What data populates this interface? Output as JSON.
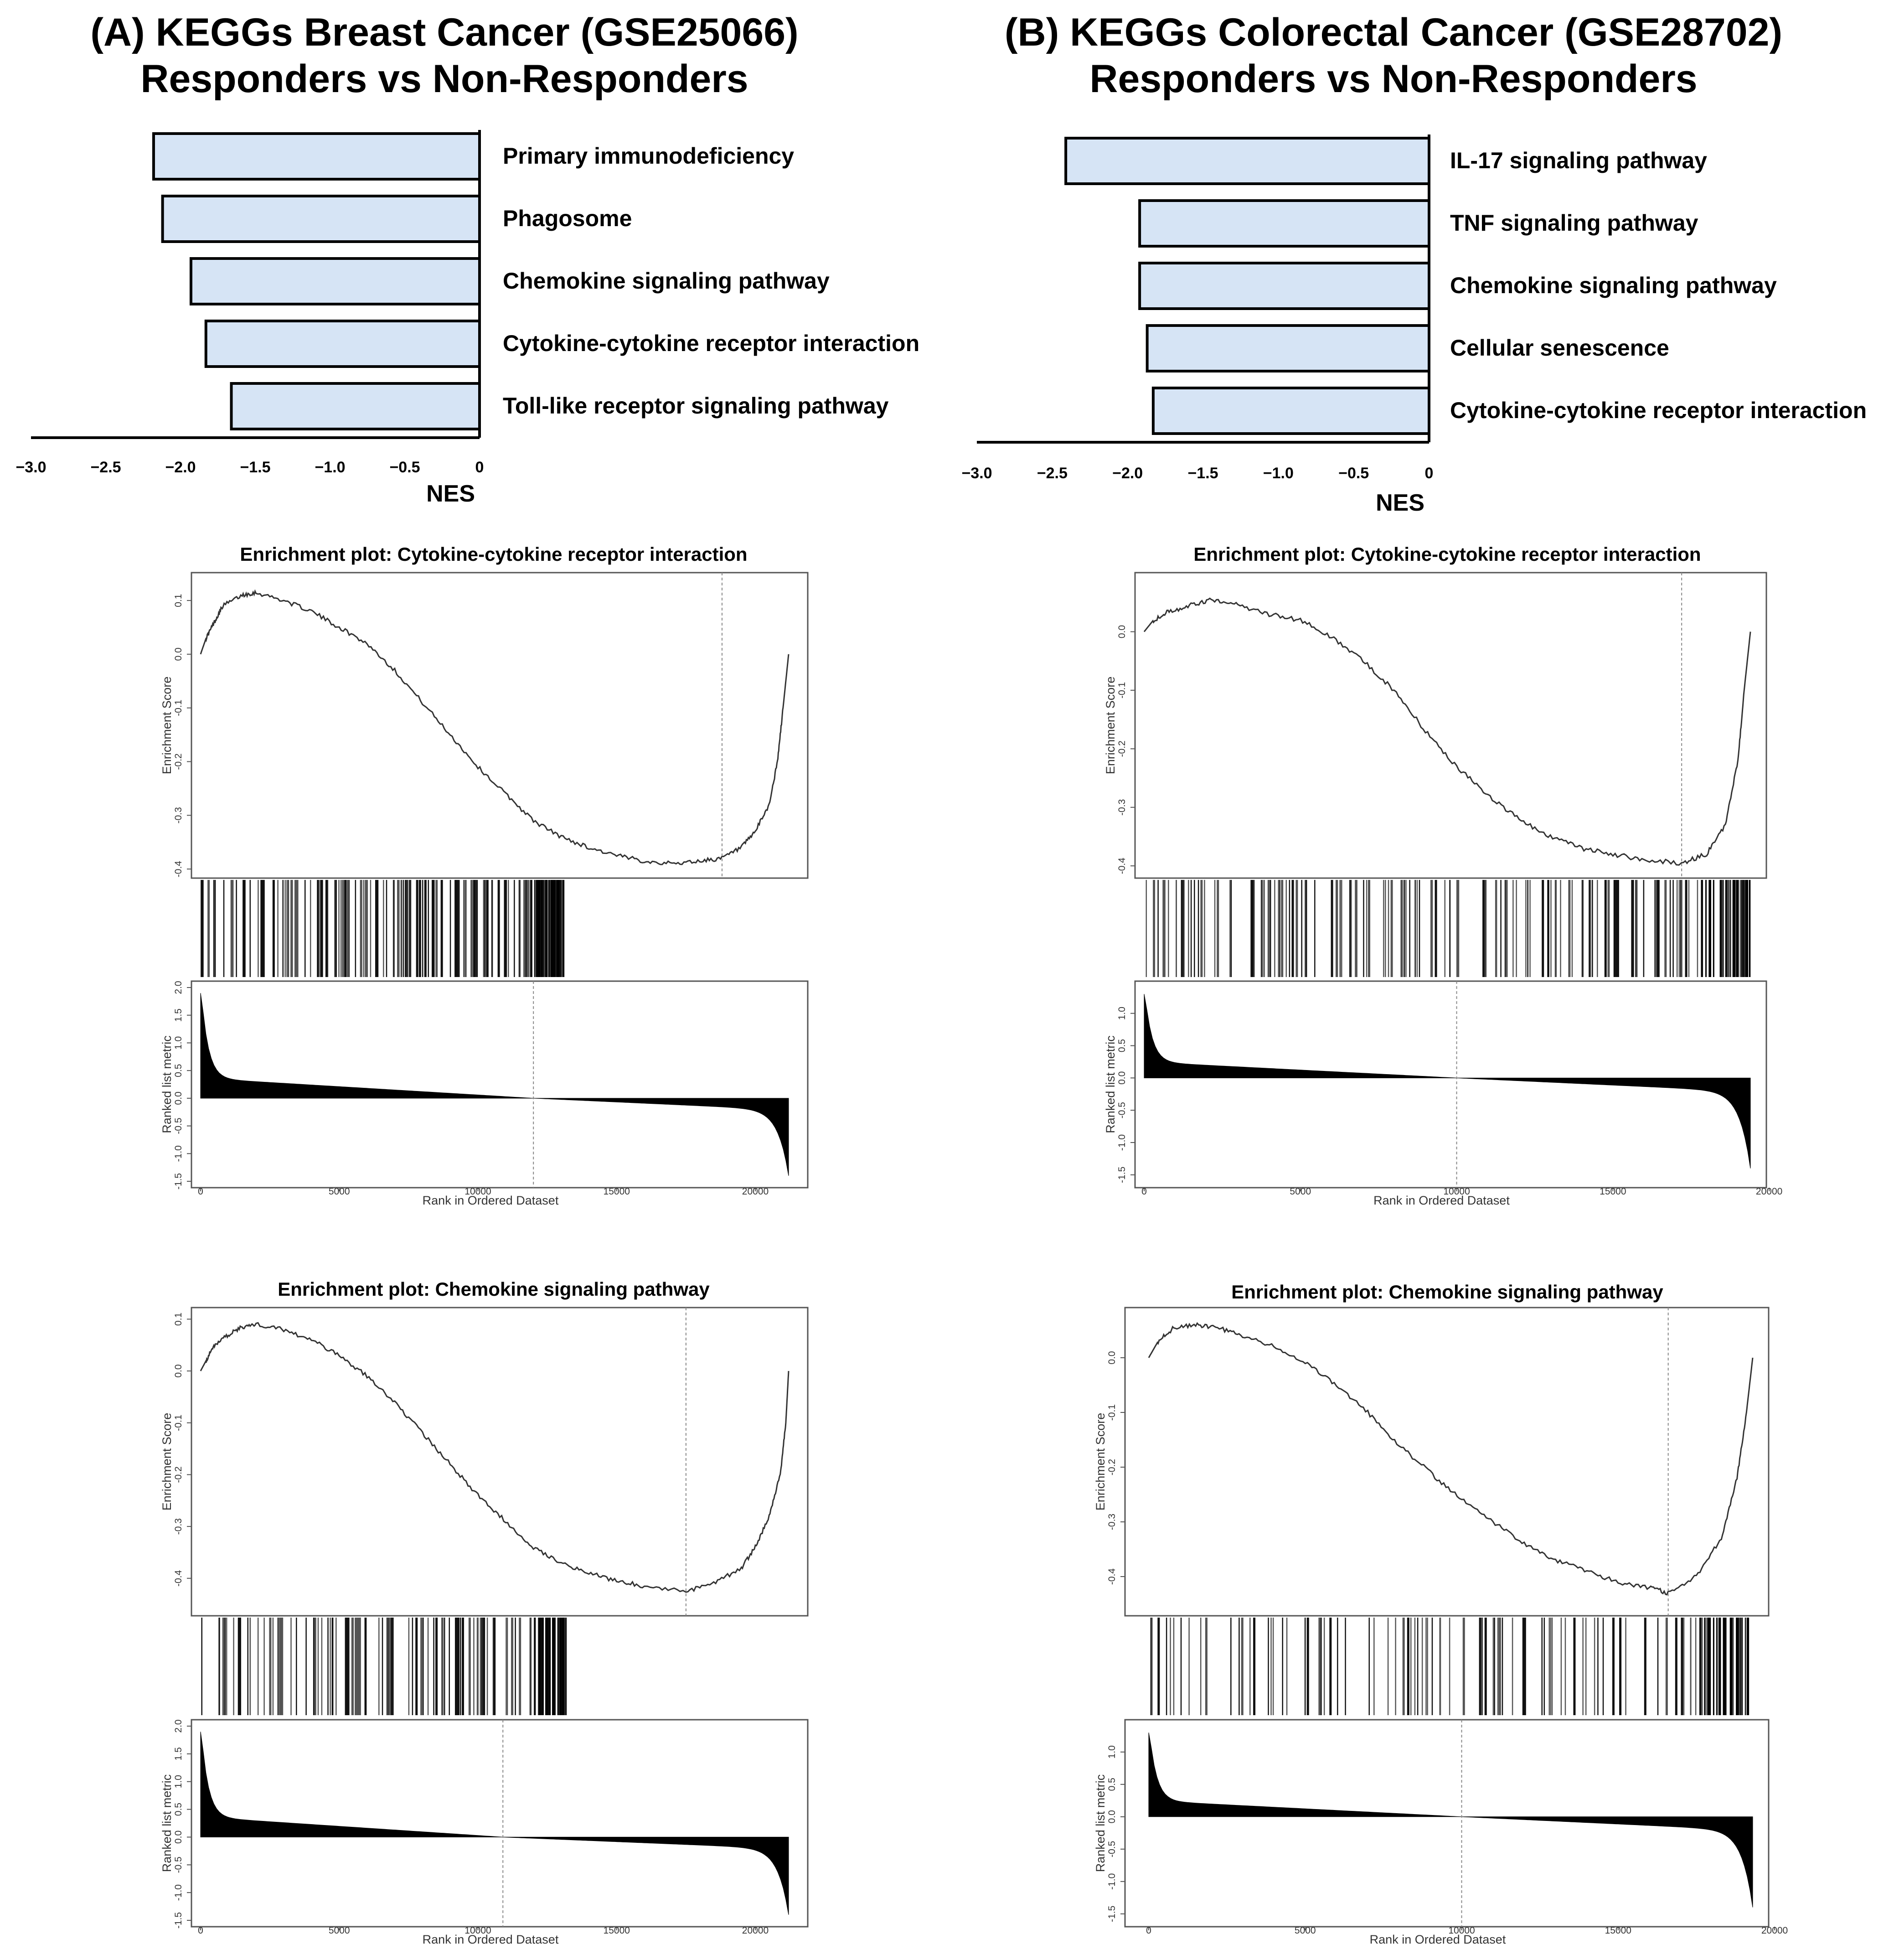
{
  "panels": [
    {
      "title_line1": "(A) KEGGs Breast Cancer (GSE25066)",
      "title_line2": "Responders vs Non-Responders",
      "nes_chart": {
        "type": "bar",
        "orientation": "horizontal",
        "categories": [
          "Primary immunodeficiency",
          "Phagosome",
          "Chemokine signaling pathway",
          "Cytokine-cytokine receptor interaction",
          "Toll-like receptor signaling pathway"
        ],
        "values": [
          -2.18,
          -2.12,
          -1.93,
          -1.83,
          -1.66
        ],
        "xlabel": "NES",
        "xlim": [
          -3.0,
          0
        ],
        "tick_labels": [
          "−3.0",
          "−2.5",
          "−2.0",
          "−1.5",
          "−1.0",
          "−0.5",
          "0"
        ]
      },
      "enrichment_plots": [
        {
          "title": "Enrichment plot: Cytokine-cytokine receptor interaction",
          "es_ylabel": "Enrichment Score",
          "es_ticks": [
            "0.1",
            "0.0",
            "-0.1",
            "-0.2",
            "-0.3",
            "-0.4"
          ],
          "es_ylim": [
            -0.405,
            0.14
          ],
          "es_curve": [
            [
              0,
              0.0
            ],
            [
              200,
              0.03
            ],
            [
              500,
              0.06
            ],
            [
              800,
              0.09
            ],
            [
              1500,
              0.11
            ],
            [
              2000,
              0.115
            ],
            [
              3000,
              0.1
            ],
            [
              4000,
              0.08
            ],
            [
              5000,
              0.05
            ],
            [
              6000,
              0.02
            ],
            [
              7000,
              -0.03
            ],
            [
              8000,
              -0.09
            ],
            [
              9000,
              -0.15
            ],
            [
              10000,
              -0.21
            ],
            [
              11000,
              -0.26
            ],
            [
              12000,
              -0.31
            ],
            [
              13000,
              -0.34
            ],
            [
              14000,
              -0.36
            ],
            [
              15000,
              -0.375
            ],
            [
              16000,
              -0.385
            ],
            [
              17000,
              -0.39
            ],
            [
              18000,
              -0.385
            ],
            [
              18800,
              -0.38
            ],
            [
              19500,
              -0.36
            ],
            [
              20000,
              -0.33
            ],
            [
              20500,
              -0.28
            ],
            [
              20800,
              -0.2
            ],
            [
              21000,
              -0.1
            ],
            [
              21200,
              0.0
            ]
          ],
          "peak_rank": 18800,
          "hits_max_rank": 13200,
          "hit_density": 1.0,
          "rank_ylabel": "Ranked list metric",
          "rank_ticks": [
            "2.0",
            "1.5",
            "1.0",
            "0.5",
            "0.0",
            "-0.5",
            "-1.0",
            "-1.5"
          ],
          "rank_ylim": [
            -1.5,
            2.0
          ],
          "rank_max": 1.9,
          "rank_min": -1.4,
          "zero_cross": 12000,
          "n_genes": 21200,
          "x_max": 22000,
          "x_ticks": [
            "0",
            "5000",
            "10000",
            "15000",
            "20000"
          ],
          "xlabel": "Rank in Ordered Dataset"
        },
        {
          "title": "Enrichment plot: Chemokine signaling pathway",
          "es_ylabel": "Enrichment Score",
          "es_ticks": [
            "0.1",
            "0.0",
            "-0.1",
            "-0.2",
            "-0.3",
            "-0.4"
          ],
          "es_ylim": [
            -0.46,
            0.11
          ],
          "es_curve": [
            [
              0,
              0.0
            ],
            [
              200,
              0.02
            ],
            [
              500,
              0.05
            ],
            [
              1000,
              0.07
            ],
            [
              1500,
              0.085
            ],
            [
              2000,
              0.09
            ],
            [
              3000,
              0.08
            ],
            [
              4000,
              0.06
            ],
            [
              5000,
              0.03
            ],
            [
              6000,
              -0.01
            ],
            [
              7000,
              -0.06
            ],
            [
              8000,
              -0.12
            ],
            [
              9000,
              -0.18
            ],
            [
              10000,
              -0.24
            ],
            [
              11000,
              -0.29
            ],
            [
              12000,
              -0.34
            ],
            [
              13000,
              -0.37
            ],
            [
              14000,
              -0.39
            ],
            [
              15000,
              -0.405
            ],
            [
              16000,
              -0.415
            ],
            [
              17500,
              -0.425
            ],
            [
              18500,
              -0.41
            ],
            [
              19500,
              -0.38
            ],
            [
              20000,
              -0.34
            ],
            [
              20500,
              -0.28
            ],
            [
              20900,
              -0.2
            ],
            [
              21100,
              -0.1
            ],
            [
              21200,
              0.0
            ]
          ],
          "peak_rank": 17500,
          "hits_max_rank": 13200,
          "hit_density": 0.7,
          "rank_ylabel": "Ranked list metric",
          "rank_ticks": [
            "2.0",
            "1.5",
            "1.0",
            "0.5",
            "0.0",
            "-0.5",
            "-1.0",
            "-1.5"
          ],
          "rank_ylim": [
            -1.5,
            2.0
          ],
          "rank_max": 1.9,
          "rank_min": -1.4,
          "zero_cross": 10900,
          "n_genes": 21200,
          "x_max": 22000,
          "x_ticks": [
            "0",
            "5000",
            "10000",
            "15000",
            "20000"
          ],
          "xlabel": "Rank in Ordered Dataset"
        }
      ]
    },
    {
      "title_line1": "(B) KEGGs Colorectal Cancer (GSE28702)",
      "title_line2": "Responders vs Non-Responders",
      "nes_chart": {
        "type": "bar",
        "orientation": "horizontal",
        "categories": [
          "IL-17 signaling pathway",
          "TNF signaling pathway",
          "Chemokine signaling pathway",
          "Cellular senescence",
          "Cytokine-cytokine receptor interaction"
        ],
        "values": [
          -2.41,
          -1.92,
          -1.92,
          -1.87,
          -1.83
        ],
        "xlabel": "NES",
        "xlim": [
          -3.0,
          0
        ],
        "tick_labels": [
          "−3.0",
          "−2.5",
          "−2.0",
          "−1.5",
          "−1.0",
          "−0.5",
          "0"
        ]
      },
      "enrichment_plots": [
        {
          "title": "Enrichment plot: Cytokine-cytokine receptor interaction",
          "es_ylabel": "Enrichment Score",
          "es_ticks": [
            "0.0",
            "-0.1",
            "-0.2",
            "-0.3",
            "-0.4"
          ],
          "es_ylim": [
            -0.41,
            0.09
          ],
          "es_curve": [
            [
              0,
              0.0
            ],
            [
              300,
              0.02
            ],
            [
              800,
              0.035
            ],
            [
              1500,
              0.045
            ],
            [
              2200,
              0.055
            ],
            [
              3000,
              0.045
            ],
            [
              4000,
              0.03
            ],
            [
              5000,
              0.02
            ],
            [
              6000,
              -0.01
            ],
            [
              7000,
              -0.05
            ],
            [
              8000,
              -0.1
            ],
            [
              9000,
              -0.17
            ],
            [
              10000,
              -0.23
            ],
            [
              11000,
              -0.28
            ],
            [
              12000,
              -0.32
            ],
            [
              13000,
              -0.35
            ],
            [
              14000,
              -0.37
            ],
            [
              15000,
              -0.38
            ],
            [
              16000,
              -0.39
            ],
            [
              17200,
              -0.395
            ],
            [
              18000,
              -0.38
            ],
            [
              18600,
              -0.33
            ],
            [
              19000,
              -0.22
            ],
            [
              19200,
              -0.1
            ],
            [
              19400,
              0.0
            ]
          ],
          "peak_rank": 17200,
          "hits_max_rank": 19400,
          "hit_density": 1.0,
          "rank_ylabel": "Ranked list metric",
          "rank_ticks": [
            "1.0",
            "0.5",
            "0.0",
            "-0.5",
            "-1.0",
            "-1.5"
          ],
          "rank_ylim": [
            -1.6,
            1.4
          ],
          "rank_max": 1.3,
          "rank_min": -1.4,
          "zero_cross": 10000,
          "n_genes": 19400,
          "x_max": 20000,
          "x_ticks": [
            "0",
            "5000",
            "10000",
            "15000",
            "20000"
          ],
          "xlabel": "Rank in Ordered Dataset"
        },
        {
          "title": "Enrichment plot: Chemokine signaling pathway",
          "es_ylabel": "Enrichment Score",
          "es_ticks": [
            "0.0",
            "-0.1",
            "-0.2",
            "-0.3",
            "-0.4"
          ],
          "es_ylim": [
            -0.46,
            0.08
          ],
          "es_curve": [
            [
              0,
              0.0
            ],
            [
              300,
              0.03
            ],
            [
              800,
              0.055
            ],
            [
              1500,
              0.06
            ],
            [
              2200,
              0.055
            ],
            [
              3000,
              0.04
            ],
            [
              4000,
              0.02
            ],
            [
              5000,
              -0.01
            ],
            [
              6000,
              -0.05
            ],
            [
              7000,
              -0.1
            ],
            [
              8000,
              -0.16
            ],
            [
              9000,
              -0.21
            ],
            [
              10000,
              -0.26
            ],
            [
              11000,
              -0.3
            ],
            [
              12000,
              -0.34
            ],
            [
              13000,
              -0.37
            ],
            [
              14000,
              -0.39
            ],
            [
              15000,
              -0.41
            ],
            [
              16000,
              -0.42
            ],
            [
              16600,
              -0.43
            ],
            [
              17500,
              -0.4
            ],
            [
              18300,
              -0.33
            ],
            [
              18800,
              -0.22
            ],
            [
              19100,
              -0.1
            ],
            [
              19300,
              0.0
            ]
          ],
          "peak_rank": 16600,
          "hits_max_rank": 19300,
          "hit_density": 0.6,
          "rank_ylabel": "Ranked list metric",
          "rank_ticks": [
            "1.0",
            "0.5",
            "0.0",
            "-0.5",
            "-1.0",
            "-1.5"
          ],
          "rank_ylim": [
            -1.6,
            1.4
          ],
          "rank_max": 1.3,
          "rank_min": -1.4,
          "zero_cross": 10000,
          "n_genes": 19300,
          "x_max": 20000,
          "x_ticks": [
            "0",
            "5000",
            "10000",
            "15000",
            "20000"
          ],
          "xlabel": "Rank in Ordered Dataset"
        }
      ]
    }
  ],
  "chart_data": [
    {
      "type": "bar",
      "title": "(A) KEGGs Breast Cancer (GSE25066) Responders vs Non-Responders",
      "categories": [
        "Primary immunodeficiency",
        "Phagosome",
        "Chemokine signaling pathway",
        "Cytokine-cytokine receptor interaction",
        "Toll-like receptor signaling pathway"
      ],
      "values": [
        -2.18,
        -2.12,
        -1.93,
        -1.83,
        -1.66
      ],
      "xlabel": "NES",
      "xlim": [
        -3.0,
        0
      ]
    },
    {
      "type": "bar",
      "title": "(B) KEGGs Colorectal Cancer (GSE28702) Responders vs Non-Responders",
      "categories": [
        "IL-17 signaling pathway",
        "TNF signaling pathway",
        "Chemokine signaling pathway",
        "Cellular senescence",
        "Cytokine-cytokine receptor interaction"
      ],
      "values": [
        -2.41,
        -1.92,
        -1.92,
        -1.87,
        -1.83
      ],
      "xlabel": "NES",
      "xlim": [
        -3.0,
        0
      ]
    },
    {
      "type": "line",
      "title": "Enrichment plot: Cytokine-cytokine receptor interaction",
      "panel": "A",
      "ylabel": "Enrichment Score",
      "xlabel": "Rank in Ordered Dataset"
    },
    {
      "type": "line",
      "title": "Enrichment plot: Chemokine signaling pathway",
      "panel": "A",
      "ylabel": "Enrichment Score",
      "xlabel": "Rank in Ordered Dataset"
    },
    {
      "type": "line",
      "title": "Enrichment plot: Cytokine-cytokine receptor interaction",
      "panel": "B",
      "ylabel": "Enrichment Score",
      "xlabel": "Rank in Ordered Dataset"
    },
    {
      "type": "line",
      "title": "Enrichment plot: Chemokine signaling pathway",
      "panel": "B",
      "ylabel": "Enrichment Score",
      "xlabel": "Rank in Ordered Dataset"
    }
  ],
  "colors": {
    "bar_fill": "#d6e4f5",
    "bar_stroke": "#000000",
    "curve": "#333333",
    "frame": "#555555",
    "peak_line": "#888888"
  }
}
